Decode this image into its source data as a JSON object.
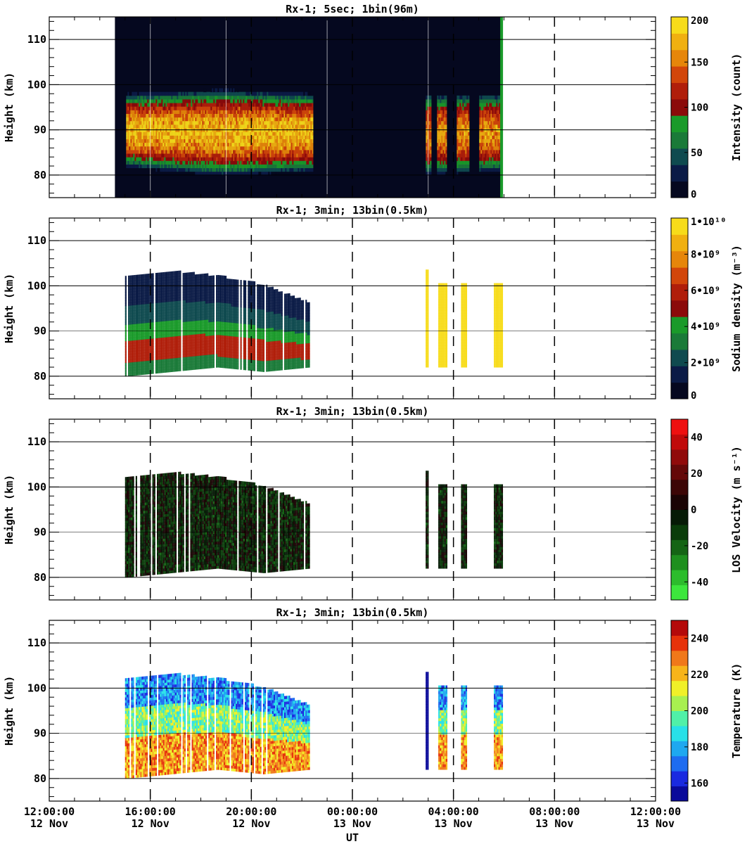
{
  "chart_data": [
    {
      "type": "heatmap",
      "title": "Rx-1;  5sec; 1bin(96m)",
      "ylabel": "Height (km)",
      "colorbar_label": "Intensity (count)",
      "colorbar_ticks": [
        "0",
        "50",
        "100",
        "150",
        "200"
      ],
      "colorbar_range": [
        0,
        200
      ],
      "colorbar_colors": [
        "#05081f",
        "#0b1b46",
        "#0f4a4f",
        "#1a7a38",
        "#1a9a2a",
        "#8b0a0a",
        "#b01e0a",
        "#d2460a",
        "#e6860a",
        "#f0b010",
        "#f7dc1a"
      ],
      "xlim_hours": [
        12,
        36
      ],
      "ylim_km": [
        75,
        115
      ],
      "yticks": [
        80,
        90,
        100,
        110
      ],
      "ytick_labels": [
        "80",
        "90",
        "100",
        "110"
      ],
      "dashed_vlines_hours": [
        20,
        24,
        28,
        32
      ],
      "data_spans_hours": [
        [
          14.6,
          29.9
        ]
      ],
      "layer": {
        "bottom_km": [
          84,
          82,
          83,
          82,
          83
        ],
        "top_km": [
          93,
          94,
          93,
          93,
          93
        ],
        "peak": 200
      }
    },
    {
      "type": "heatmap",
      "title": "Rx-1; 3min; 13bin(0.5km)",
      "ylabel": "Height (km)",
      "colorbar_label": "Sodium density (m⁻³)",
      "colorbar_ticks": [
        "0",
        "2•10⁹",
        "4•10⁹",
        "6•10⁹",
        "8•10⁹",
        "1•10¹⁰"
      ],
      "colorbar_range": [
        0,
        10000000000
      ],
      "colorbar_colors": [
        "#05081f",
        "#0b1b46",
        "#0f4a4f",
        "#1a7a38",
        "#1a9a2a",
        "#8b0a0a",
        "#b01e0a",
        "#d2460a",
        "#e6860a",
        "#f0b010",
        "#f7dc1a"
      ],
      "xlim_hours": [
        12,
        36
      ],
      "ylim_km": [
        75,
        115
      ],
      "yticks": [
        80,
        90,
        100,
        110
      ],
      "ytick_labels": [
        "80",
        "90",
        "100",
        "110"
      ],
      "dashed_vlines_hours": [
        16,
        20,
        24,
        28,
        32
      ],
      "data_spans_hours": [
        [
          15.0,
          22.3
        ],
        [
          26.9,
          27.0
        ],
        [
          27.4,
          27.7
        ],
        [
          28.3,
          28.5
        ],
        [
          29.6,
          29.9
        ]
      ],
      "layer": {
        "bottom_km": [
          80,
          81,
          82,
          81,
          82
        ],
        "top_km": [
          102,
          103,
          102,
          100,
          96
        ]
      }
    },
    {
      "type": "heatmap",
      "title": "Rx-1; 3min; 13bin(0.5km)",
      "ylabel": "Height (km)",
      "colorbar_label": "LOS Velocity (m s⁻¹)",
      "colorbar_ticks": [
        "-40",
        "-20",
        "0",
        "20",
        "40"
      ],
      "colorbar_range": [
        -50,
        50
      ],
      "colorbar_colors": [
        "#3ce63c",
        "#2cbc2c",
        "#1e8f1e",
        "#146414",
        "#0a3c0a",
        "#061a06",
        "#1a0404",
        "#3c0606",
        "#640808",
        "#900a0a",
        "#c00a0a",
        "#ee1010"
      ],
      "xlim_hours": [
        12,
        36
      ],
      "ylim_km": [
        75,
        115
      ],
      "yticks": [
        80,
        90,
        100,
        110
      ],
      "ytick_labels": [
        "80",
        "90",
        "100",
        "110"
      ],
      "dashed_vlines_hours": [
        16,
        20,
        24,
        28,
        32
      ],
      "data_spans_hours": [
        [
          15.0,
          22.3
        ],
        [
          26.9,
          27.0
        ],
        [
          27.4,
          27.7
        ],
        [
          28.3,
          28.5
        ],
        [
          29.6,
          29.9
        ]
      ],
      "layer": {
        "bottom_km": [
          80,
          81,
          82,
          81,
          82
        ],
        "top_km": [
          102,
          103,
          102,
          100,
          96
        ]
      }
    },
    {
      "type": "heatmap",
      "title": "Rx-1; 3min; 13bin(0.5km)",
      "ylabel": "Height (km)",
      "xlabel": "UT",
      "colorbar_label": "Temperature (K)",
      "colorbar_ticks": [
        "160",
        "180",
        "200",
        "220",
        "240"
      ],
      "colorbar_range": [
        150,
        250
      ],
      "colorbar_colors": [
        "#0a0a9a",
        "#1a2ae0",
        "#1e6cf0",
        "#1ea8f0",
        "#28e0e8",
        "#50f0a8",
        "#a8f050",
        "#f0f028",
        "#f7b41a",
        "#f0781a",
        "#e6320a",
        "#b40a0a"
      ],
      "xlim_hours": [
        12,
        36
      ],
      "ylim_km": [
        75,
        115
      ],
      "yticks": [
        80,
        90,
        100,
        110
      ],
      "ytick_labels": [
        "80",
        "90",
        "100",
        "110"
      ],
      "dashed_vlines_hours": [
        16,
        20,
        24,
        28,
        32
      ],
      "data_spans_hours": [
        [
          15.0,
          22.3
        ],
        [
          26.9,
          27.0
        ],
        [
          27.4,
          27.7
        ],
        [
          28.3,
          28.5
        ],
        [
          29.6,
          29.9
        ]
      ],
      "layer": {
        "bottom_km": [
          80,
          81,
          82,
          81,
          82
        ],
        "top_km": [
          102,
          103,
          102,
          100,
          96
        ]
      },
      "xticks_hours": [
        12,
        16,
        20,
        24,
        28,
        32,
        36
      ],
      "xtick_labels": [
        [
          "12:00:00",
          "12 Nov"
        ],
        [
          "16:00:00",
          "12 Nov"
        ],
        [
          "20:00:00",
          "12 Nov"
        ],
        [
          "00:00:00",
          "13 Nov"
        ],
        [
          "04:00:00",
          "13 Nov"
        ],
        [
          "08:00:00",
          "13 Nov"
        ],
        [
          "12:00:00",
          "13 Nov"
        ]
      ]
    }
  ]
}
